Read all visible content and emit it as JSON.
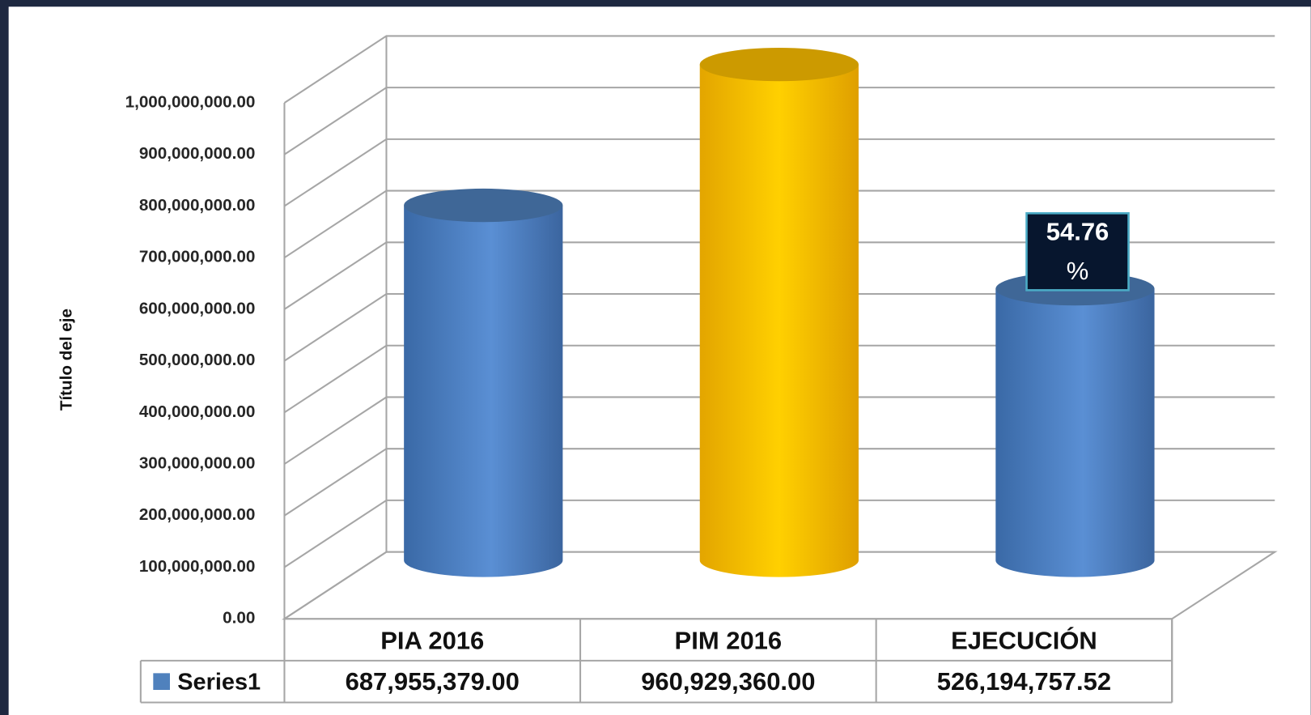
{
  "chart_data": {
    "type": "bar3d",
    "y_axis_label": "Título del eje",
    "categories": [
      "PIA 2016",
      "PIM 2016",
      "EJECUCIÓN"
    ],
    "series": [
      {
        "name": "Series1",
        "color": "#4f81bd",
        "colors": [
          "#4f81bd",
          "#ffc000",
          "#4f81bd"
        ],
        "values": [
          687955379.0,
          960929360.0,
          526194757.52
        ],
        "value_labels": [
          "687,955,379.00",
          "960,929,360.00",
          "526,194,757.52"
        ]
      }
    ],
    "ylim": [
      0,
      1000000000
    ],
    "yticks": [
      {
        "value": 0,
        "label": "0.00"
      },
      {
        "value": 100000000,
        "label": "100,000,000.00"
      },
      {
        "value": 200000000,
        "label": "200,000,000.00"
      },
      {
        "value": 300000000,
        "label": "300,000,000.00"
      },
      {
        "value": 400000000,
        "label": "400,000,000.00"
      },
      {
        "value": 500000000,
        "label": "500,000,000.00"
      },
      {
        "value": 600000000,
        "label": "600,000,000.00"
      },
      {
        "value": 700000000,
        "label": "700,000,000.00"
      },
      {
        "value": 800000000,
        "label": "800,000,000.00"
      },
      {
        "value": 900000000,
        "label": "900,000,000.00"
      },
      {
        "value": 1000000000,
        "label": "1,000,000,000.00"
      }
    ],
    "grid": true,
    "annotation": {
      "lines": [
        "54.76",
        "%"
      ],
      "category_index": 2
    }
  }
}
